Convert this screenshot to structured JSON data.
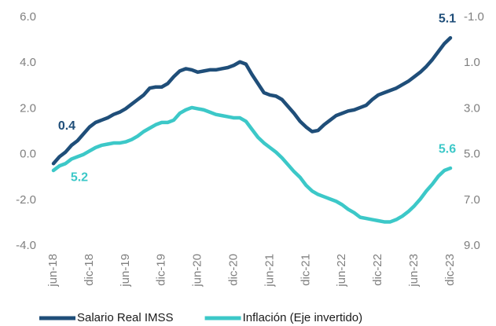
{
  "chart_data": {
    "type": "line",
    "categories": [
      "jun-18",
      null,
      null,
      null,
      null,
      null,
      "dic-18",
      null,
      null,
      null,
      null,
      null,
      "jun-19",
      null,
      null,
      null,
      null,
      null,
      "dic-19",
      null,
      null,
      null,
      null,
      null,
      "jun-20",
      null,
      null,
      null,
      null,
      null,
      "dic-20",
      null,
      null,
      null,
      null,
      null,
      "jun-21",
      null,
      null,
      null,
      null,
      null,
      "dic-21",
      null,
      null,
      null,
      null,
      null,
      "jun-22",
      null,
      null,
      null,
      null,
      null,
      "dic-22",
      null,
      null,
      null,
      null,
      null,
      "jun-23",
      null,
      null,
      null,
      null,
      null,
      "dic-23"
    ],
    "series": [
      {
        "name": "Salario Real IMSS",
        "color": "#1f4e79",
        "labeled_points": [
          3,
          66
        ],
        "values": [
          -0.4,
          -0.1,
          0.1,
          0.4,
          0.6,
          0.9,
          1.2,
          1.4,
          1.5,
          1.6,
          1.75,
          1.85,
          2.0,
          2.2,
          2.4,
          2.6,
          2.9,
          2.95,
          2.95,
          3.1,
          3.4,
          3.65,
          3.75,
          3.7,
          3.6,
          3.65,
          3.7,
          3.7,
          3.75,
          3.8,
          3.9,
          4.05,
          3.95,
          3.5,
          3.1,
          2.7,
          2.6,
          2.55,
          2.4,
          2.1,
          1.8,
          1.45,
          1.2,
          1.0,
          1.05,
          1.3,
          1.5,
          1.7,
          1.8,
          1.9,
          1.95,
          2.05,
          2.15,
          2.4,
          2.6,
          2.7,
          2.8,
          2.9,
          3.05,
          3.2,
          3.4,
          3.6,
          3.85,
          4.15,
          4.5,
          4.85,
          5.1
        ]
      },
      {
        "name": "Inflación (Eje invertido)",
        "color": "#3cc8c8",
        "axis": "y2",
        "labeled_points": [
          3,
          66
        ],
        "values": [
          5.7,
          5.5,
          5.4,
          5.2,
          5.1,
          5.0,
          4.85,
          4.7,
          4.6,
          4.55,
          4.5,
          4.5,
          4.45,
          4.35,
          4.2,
          4.0,
          3.85,
          3.7,
          3.6,
          3.6,
          3.5,
          3.2,
          3.05,
          2.95,
          3.0,
          3.05,
          3.15,
          3.25,
          3.3,
          3.35,
          3.4,
          3.4,
          3.55,
          3.9,
          4.25,
          4.5,
          4.7,
          4.9,
          5.15,
          5.45,
          5.75,
          6.0,
          6.35,
          6.6,
          6.75,
          6.85,
          6.95,
          7.05,
          7.2,
          7.4,
          7.55,
          7.75,
          7.8,
          7.85,
          7.9,
          7.95,
          7.95,
          7.85,
          7.7,
          7.5,
          7.25,
          6.95,
          6.6,
          6.3,
          5.95,
          5.7,
          5.6
        ]
      }
    ],
    "ylim": [
      -4,
      6
    ],
    "yticks": [
      {
        "value": -4,
        "label": "-4.0"
      },
      {
        "value": -2,
        "label": "-2.0"
      },
      {
        "value": 0,
        "label": "0.0"
      },
      {
        "value": 2,
        "label": "2.0"
      },
      {
        "value": 4,
        "label": "4.0"
      },
      {
        "value": 6,
        "label": "6.0"
      }
    ],
    "y2lim": [
      9,
      -1
    ],
    "y2_inverted": true,
    "y2ticks": [
      {
        "value": -1,
        "label": "-1.0"
      },
      {
        "value": 1,
        "label": "1.0"
      },
      {
        "value": 3,
        "label": "3.0"
      },
      {
        "value": 5,
        "label": "5.0"
      },
      {
        "value": 7,
        "label": "7.0"
      },
      {
        "value": 9,
        "label": "9.0"
      }
    ],
    "grid": false,
    "legend": "bottom"
  }
}
